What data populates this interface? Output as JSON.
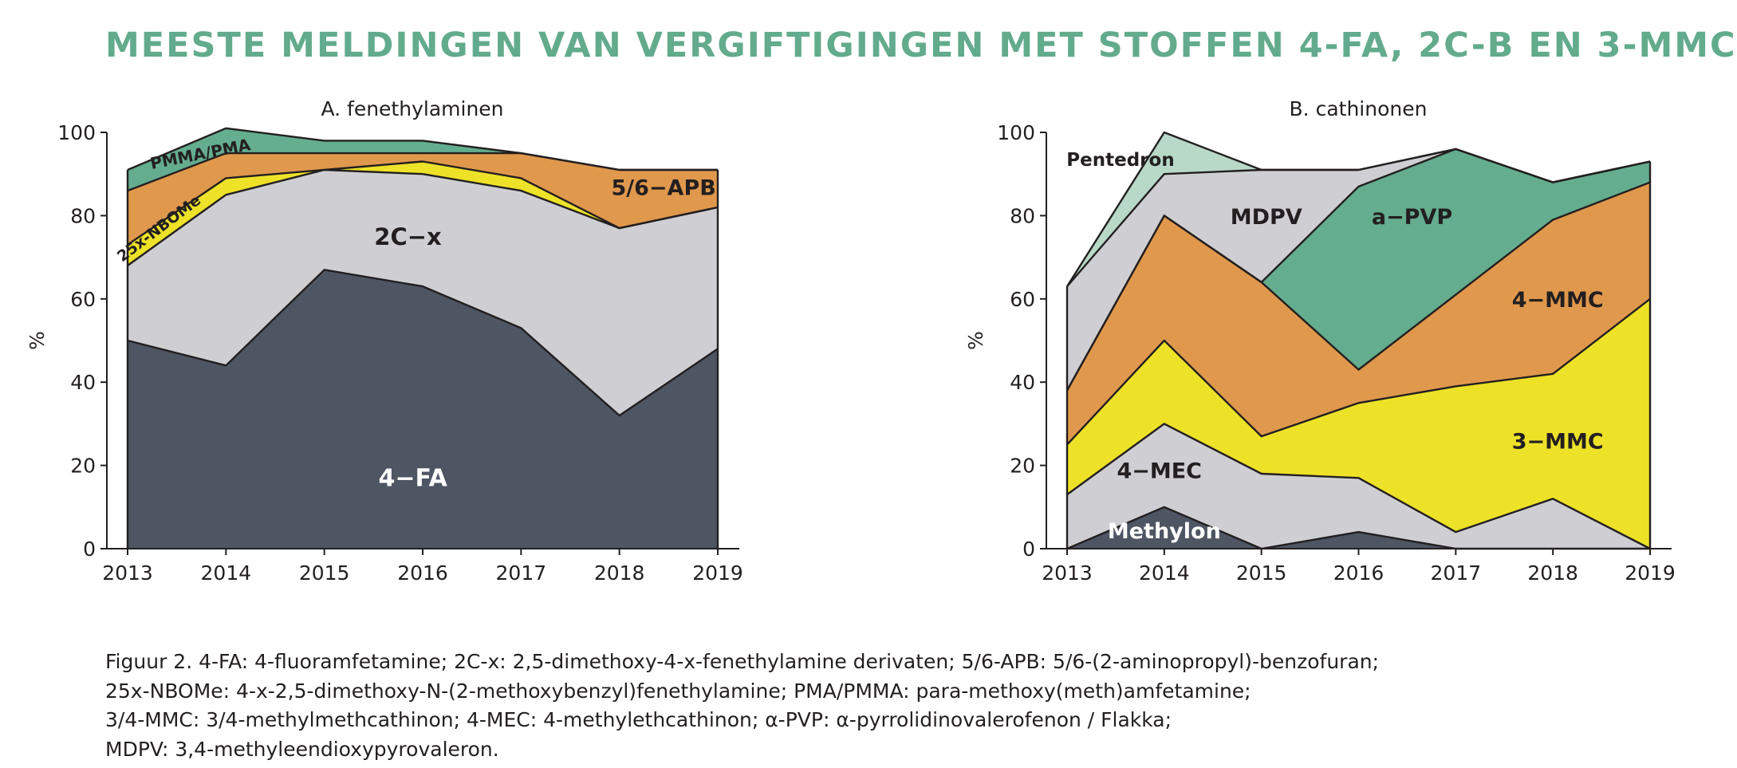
{
  "title": "MEESTE MELDINGEN VAN VERGIFTIGINGEN MET STOFFEN 4-FA, 2C-B EN 3-MMC",
  "colors": {
    "title": "#62ab8c",
    "dark": "#4e5563",
    "grey": "#cfcfd3",
    "orange": "#e0984c",
    "yellow": "#ede228",
    "green": "#64ad8f",
    "lightgreen": "#b8d8c8",
    "line": "#231f20"
  },
  "chart_data": [
    {
      "type": "area",
      "stacked": true,
      "title": "A. fenethylaminen",
      "ylabel": "%",
      "xlabel": "",
      "x": [
        "2013",
        "2014",
        "2015",
        "2016",
        "2017",
        "2018",
        "2019"
      ],
      "ylim": [
        0,
        100
      ],
      "yticks": [
        "0",
        "20",
        "40",
        "60",
        "80",
        "100"
      ],
      "grid": false,
      "legend": "none (inline labels)",
      "series": [
        {
          "name": "4-FA",
          "label": "4−FA",
          "color": "#4e5563",
          "values": [
            50,
            44,
            67,
            63,
            53,
            32,
            48
          ]
        },
        {
          "name": "2C-x",
          "label": "2C−x",
          "color": "#cfcfd3",
          "values": [
            18,
            41,
            24,
            27,
            33,
            45,
            34
          ]
        },
        {
          "name": "25x-NBOMe",
          "label": "25x-NBOMe",
          "color": "#ede228",
          "values": [
            5,
            4,
            0,
            3,
            3,
            0,
            0
          ]
        },
        {
          "name": "5/6-APB",
          "label": "5/6−APB",
          "color": "#e0984c",
          "values": [
            13,
            6,
            4,
            2,
            6,
            14,
            9
          ]
        },
        {
          "name": "PMMA/PMA",
          "label": "PMMA/PMA",
          "color": "#64ad8f",
          "values": [
            5,
            6,
            3,
            3,
            0,
            0,
            0
          ]
        }
      ]
    },
    {
      "type": "area",
      "stacked": true,
      "title": "B. cathinonen",
      "ylabel": "%",
      "xlabel": "",
      "x": [
        "2013",
        "2014",
        "2015",
        "2016",
        "2017",
        "2018",
        "2019"
      ],
      "ylim": [
        0,
        100
      ],
      "yticks": [
        "0",
        "20",
        "40",
        "60",
        "80",
        "100"
      ],
      "grid": false,
      "legend": "none (inline labels)",
      "series": [
        {
          "name": "Methylon",
          "label": "Methylon",
          "color": "#4e5563",
          "values": [
            0,
            10,
            0,
            4,
            0,
            0,
            0
          ]
        },
        {
          "name": "4-MEC",
          "label": "4−MEC",
          "color": "#cfcfd3",
          "values": [
            13,
            20,
            18,
            13,
            4,
            12,
            0
          ]
        },
        {
          "name": "3-MMC",
          "label": "3−MMC",
          "color": "#ede228",
          "values": [
            12,
            20,
            9,
            18,
            35,
            30,
            60
          ]
        },
        {
          "name": "4-MMC",
          "label": "4−MMC",
          "color": "#e0984c",
          "values": [
            13,
            30,
            37,
            8,
            22,
            37,
            28
          ]
        },
        {
          "name": "a-PVP",
          "label": "a−PVP",
          "color": "#64ad8f",
          "values": [
            0,
            0,
            0,
            44,
            35,
            9,
            5
          ]
        },
        {
          "name": "MDPV",
          "label": "MDPV",
          "color": "#cfcfd3",
          "values": [
            25,
            10,
            27,
            4,
            0,
            0,
            0
          ]
        },
        {
          "name": "Pentedron",
          "label": "Pentedron",
          "color": "#b8d8c8",
          "values": [
            0,
            10,
            0,
            0,
            0,
            0,
            0
          ]
        }
      ]
    }
  ],
  "caption": [
    "Figuur 2. 4-FA: 4-fluoramfetamine; 2C-x: 2,5-dimethoxy-4-x-fenethylamine derivaten; 5/6-APB: 5/6-(2-aminopropyl)-benzofuran;",
    "25x-NBOMe: 4-x-2,5-dimethoxy-N-(2-methoxybenzyl)fenethylamine; PMA/PMMA: para-methoxy(meth)amfetamine;",
    "3/4-MMC: 3/4-methylmethcathinon; 4-MEC: 4-methylethcathinon; α-PVP: α-pyrrolidinovalerofenon / Flakka;",
    "MDPV: 3,4-methyleendioxypyrovaleron."
  ]
}
